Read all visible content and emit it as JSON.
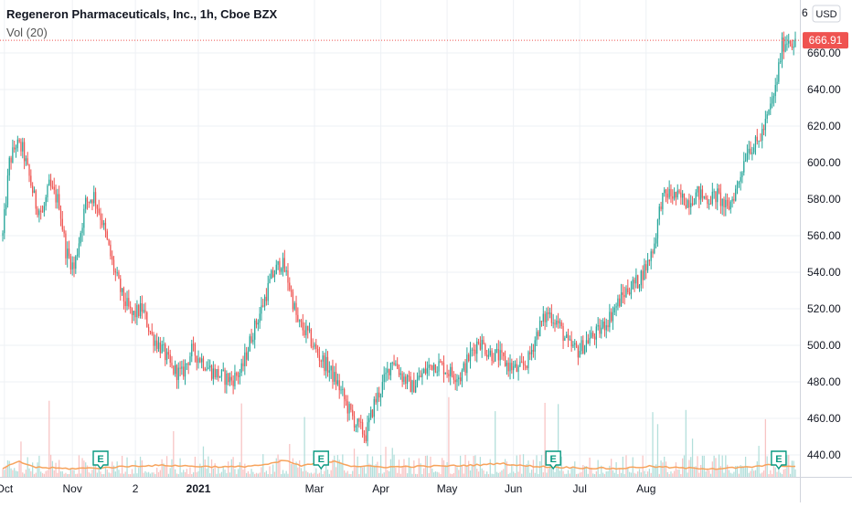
{
  "header": {
    "title": "Regeneron Pharmaceuticals, Inc., 1h, Cboe BZX",
    "volume_indicator": "Vol (20)"
  },
  "price_scale": {
    "currency_label": "USD",
    "last_price_label": "666.91",
    "top_partial_label": "6"
  },
  "colors": {
    "up": "#26a69a",
    "down": "#ef5350",
    "vol_up": "#b2dfdb",
    "vol_down": "#f8c3c3",
    "vol_ma": "#f7a35c",
    "grid": "#eef1f5",
    "axis_text": "#131722",
    "last_price_bg": "#ef5350",
    "earnings_badge": "#089981"
  },
  "earnings_markers": [
    {
      "label": "E"
    },
    {
      "label": "E"
    },
    {
      "label": "E"
    },
    {
      "label": "E"
    }
  ],
  "chart_data": {
    "type": "candlestick",
    "title": "Regeneron Pharmaceuticals, Inc., 1h, Cboe BZX",
    "timeframe": "1h",
    "currency": "USD",
    "y_ticks": [
      440,
      460,
      480,
      500,
      520,
      540,
      560,
      580,
      600,
      620,
      640,
      660
    ],
    "ylim": [
      428,
      681
    ],
    "last_price": 666.91,
    "x_ticks": [
      "Oct",
      "Nov",
      "2",
      "2021",
      "Mar",
      "Apr",
      "May",
      "Jun",
      "Jul",
      "Aug"
    ],
    "grid": true,
    "price_path": [
      [
        0,
        560
      ],
      [
        4,
        600
      ],
      [
        8,
        610
      ],
      [
        12,
        607
      ],
      [
        16,
        592
      ],
      [
        20,
        577
      ],
      [
        24,
        572
      ],
      [
        28,
        587
      ],
      [
        34,
        578
      ],
      [
        38,
        552
      ],
      [
        43,
        542
      ],
      [
        50,
        578
      ],
      [
        55,
        582
      ],
      [
        60,
        568
      ],
      [
        66,
        545
      ],
      [
        72,
        527
      ],
      [
        78,
        516
      ],
      [
        84,
        520
      ],
      [
        90,
        505
      ],
      [
        96,
        498
      ],
      [
        102,
        487
      ],
      [
        108,
        484
      ],
      [
        114,
        497
      ],
      [
        120,
        492
      ],
      [
        126,
        486
      ],
      [
        132,
        483
      ],
      [
        138,
        481
      ],
      [
        144,
        486
      ],
      [
        150,
        505
      ],
      [
        156,
        520
      ],
      [
        162,
        537
      ],
      [
        168,
        546
      ],
      [
        172,
        536
      ],
      [
        178,
        512
      ],
      [
        184,
        506
      ],
      [
        190,
        495
      ],
      [
        196,
        488
      ],
      [
        202,
        479
      ],
      [
        208,
        466
      ],
      [
        213,
        457
      ],
      [
        219,
        451
      ],
      [
        224,
        468
      ],
      [
        229,
        478
      ],
      [
        235,
        493
      ],
      [
        241,
        483
      ],
      [
        247,
        477
      ],
      [
        253,
        484
      ],
      [
        259,
        490
      ],
      [
        264,
        489
      ],
      [
        270,
        485
      ],
      [
        276,
        483
      ],
      [
        281,
        493
      ],
      [
        287,
        503
      ],
      [
        293,
        496
      ],
      [
        299,
        494
      ],
      [
        305,
        489
      ],
      [
        311,
        486
      ],
      [
        317,
        492
      ],
      [
        323,
        509
      ],
      [
        329,
        518
      ],
      [
        335,
        512
      ],
      [
        341,
        500
      ],
      [
        347,
        497
      ],
      [
        353,
        503
      ],
      [
        359,
        507
      ],
      [
        365,
        514
      ],
      [
        371,
        523
      ],
      [
        377,
        531
      ],
      [
        383,
        535
      ],
      [
        389,
        545
      ],
      [
        393,
        556
      ],
      [
        397,
        579
      ],
      [
        401,
        583
      ],
      [
        407,
        581
      ],
      [
        413,
        579
      ],
      [
        419,
        583
      ],
      [
        425,
        580
      ],
      [
        431,
        582
      ],
      [
        437,
        574
      ],
      [
        443,
        587
      ],
      [
        449,
        608
      ],
      [
        455,
        610
      ],
      [
        460,
        621
      ],
      [
        466,
        640
      ],
      [
        470,
        664
      ],
      [
        474,
        668
      ],
      [
        478,
        665
      ]
    ],
    "volume_ma_path": [
      [
        0,
        0.32
      ],
      [
        10,
        0.55
      ],
      [
        20,
        0.35
      ],
      [
        40,
        0.3
      ],
      [
        60,
        0.33
      ],
      [
        80,
        0.4
      ],
      [
        100,
        0.42
      ],
      [
        120,
        0.38
      ],
      [
        140,
        0.36
      ],
      [
        160,
        0.45
      ],
      [
        170,
        0.6
      ],
      [
        180,
        0.4
      ],
      [
        200,
        0.58
      ],
      [
        210,
        0.4
      ],
      [
        230,
        0.36
      ],
      [
        250,
        0.38
      ],
      [
        270,
        0.4
      ],
      [
        290,
        0.44
      ],
      [
        300,
        0.5
      ],
      [
        310,
        0.42
      ],
      [
        330,
        0.36
      ],
      [
        350,
        0.33
      ],
      [
        370,
        0.3
      ],
      [
        390,
        0.38
      ],
      [
        410,
        0.32
      ],
      [
        430,
        0.3
      ],
      [
        450,
        0.35
      ],
      [
        465,
        0.45
      ],
      [
        478,
        0.36
      ]
    ]
  }
}
